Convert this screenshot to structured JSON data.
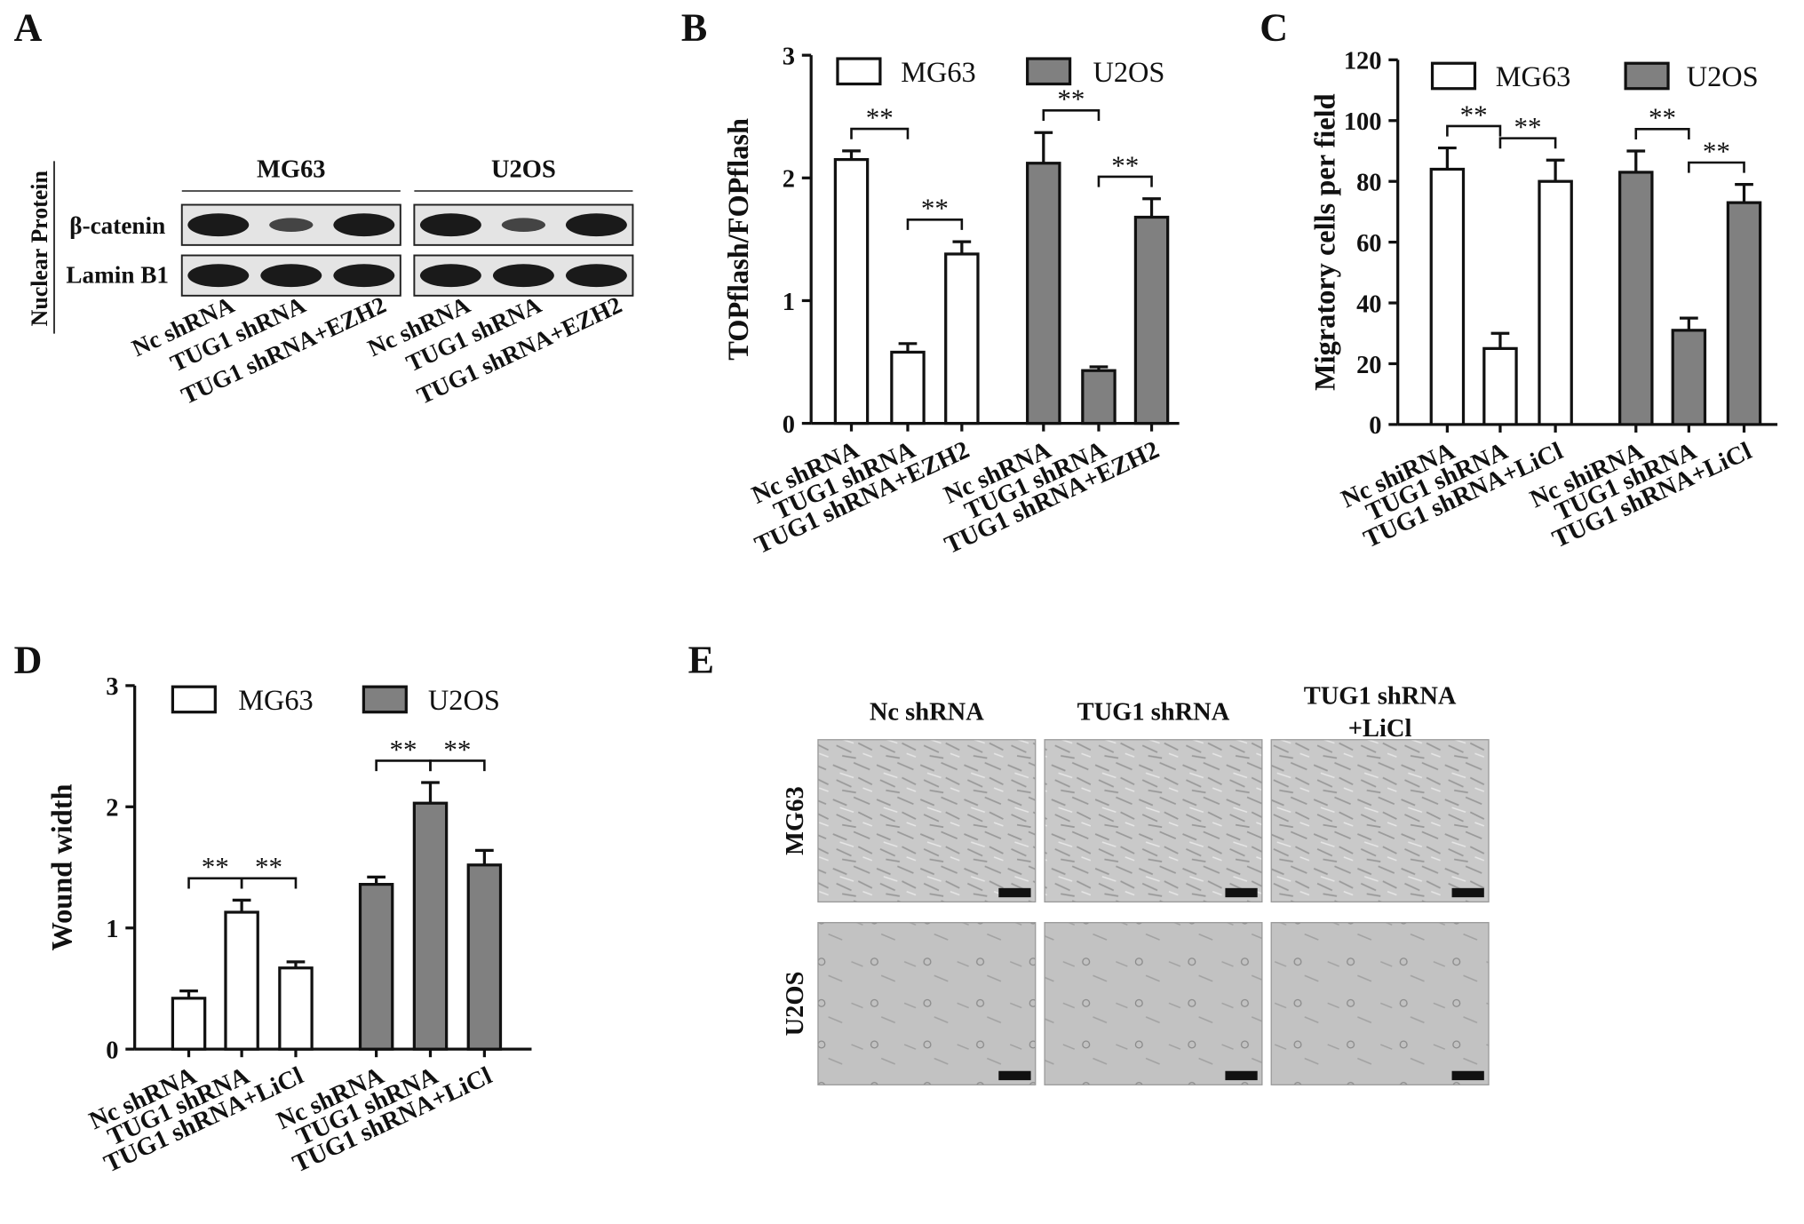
{
  "chart_data": [
    {
      "type": "bar",
      "panel": "B",
      "y_label": "TOPflash/FOPflash",
      "categories": [
        "Nc shRNA",
        "TUG1 shRNA",
        "TUG1 shRNA+EZH2",
        "Nc shRNA",
        "TUG1 shRNA",
        "TUG1 shRNA+EZH2"
      ],
      "series": [
        {
          "name": "MG63",
          "color": "#ffffff",
          "values": [
            2.15,
            0.58,
            1.38,
            null,
            null,
            null
          ],
          "errors": [
            0.07,
            0.07,
            0.1,
            null,
            null,
            null
          ]
        },
        {
          "name": "U2OS",
          "color": "#808080",
          "values": [
            null,
            null,
            null,
            2.12,
            0.43,
            1.68
          ],
          "errors": [
            null,
            null,
            null,
            0.25,
            0.03,
            0.15
          ]
        }
      ],
      "ylim": [
        0,
        3
      ],
      "yticks": [
        0,
        1,
        2,
        3
      ],
      "annotations": [
        "**",
        "**",
        "**",
        "**"
      ]
    },
    {
      "type": "bar",
      "panel": "C",
      "y_label": "Migratory cells per field",
      "categories": [
        "Nc shiRNA",
        "TUG1 shRNA",
        "TUG1 shRNA+LiCl",
        "Nc shiRNA",
        "TUG1 shRNA",
        "TUG1 shRNA+LiCl"
      ],
      "series": [
        {
          "name": "MG63",
          "color": "#ffffff",
          "values": [
            84,
            25,
            80,
            null,
            null,
            null
          ],
          "errors": [
            7,
            5,
            7,
            null,
            null,
            null
          ]
        },
        {
          "name": "U2OS",
          "color": "#808080",
          "values": [
            null,
            null,
            null,
            83,
            31,
            73
          ],
          "errors": [
            null,
            null,
            null,
            7,
            4,
            6
          ]
        }
      ],
      "ylim": [
        0,
        120
      ],
      "yticks": [
        0,
        20,
        40,
        60,
        80,
        100,
        120
      ],
      "annotations": [
        "**",
        "**",
        "**",
        "**"
      ]
    },
    {
      "type": "bar",
      "panel": "D",
      "y_label": "Wound width",
      "categories": [
        "Nc shRNA",
        "TUG1 shRNA",
        "TUG1 shRNA+LiCl",
        "Nc shRNA",
        "TUG1 shRNA",
        "TUG1 shRNA+LiCl"
      ],
      "series": [
        {
          "name": "MG63",
          "color": "#ffffff",
          "values": [
            0.42,
            1.13,
            0.67,
            null,
            null,
            null
          ],
          "errors": [
            0.06,
            0.1,
            0.05,
            null,
            null,
            null
          ]
        },
        {
          "name": "U2OS",
          "color": "#808080",
          "values": [
            null,
            null,
            null,
            1.36,
            2.03,
            1.52
          ],
          "errors": [
            null,
            null,
            null,
            0.06,
            0.17,
            0.12
          ]
        }
      ],
      "ylim": [
        0,
        3
      ],
      "yticks": [
        0,
        1,
        2,
        3
      ],
      "annotations": [
        "**",
        "**",
        "**",
        "**"
      ]
    }
  ],
  "blot": {
    "panel": "A",
    "side_label": "Nuclear Protein",
    "groups": [
      "MG63",
      "U2OS"
    ],
    "rows": [
      "β-catenin",
      "Lamin B1"
    ],
    "lanes": [
      "Nc shRNA",
      "TUG1 shRNA",
      "TUG1 shRNA+EZH2",
      "Nc shRNA",
      "TUG1 shRNA",
      "TUG1 shRNA+EZH2"
    ]
  },
  "micrographs": {
    "panel": "E",
    "columns": [
      [
        "Nc shRNA"
      ],
      [
        "TUG1 shRNA"
      ],
      [
        "TUG1 shRNA",
        "+LiCl"
      ]
    ],
    "rows": [
      "MG63",
      "U2OS"
    ]
  }
}
